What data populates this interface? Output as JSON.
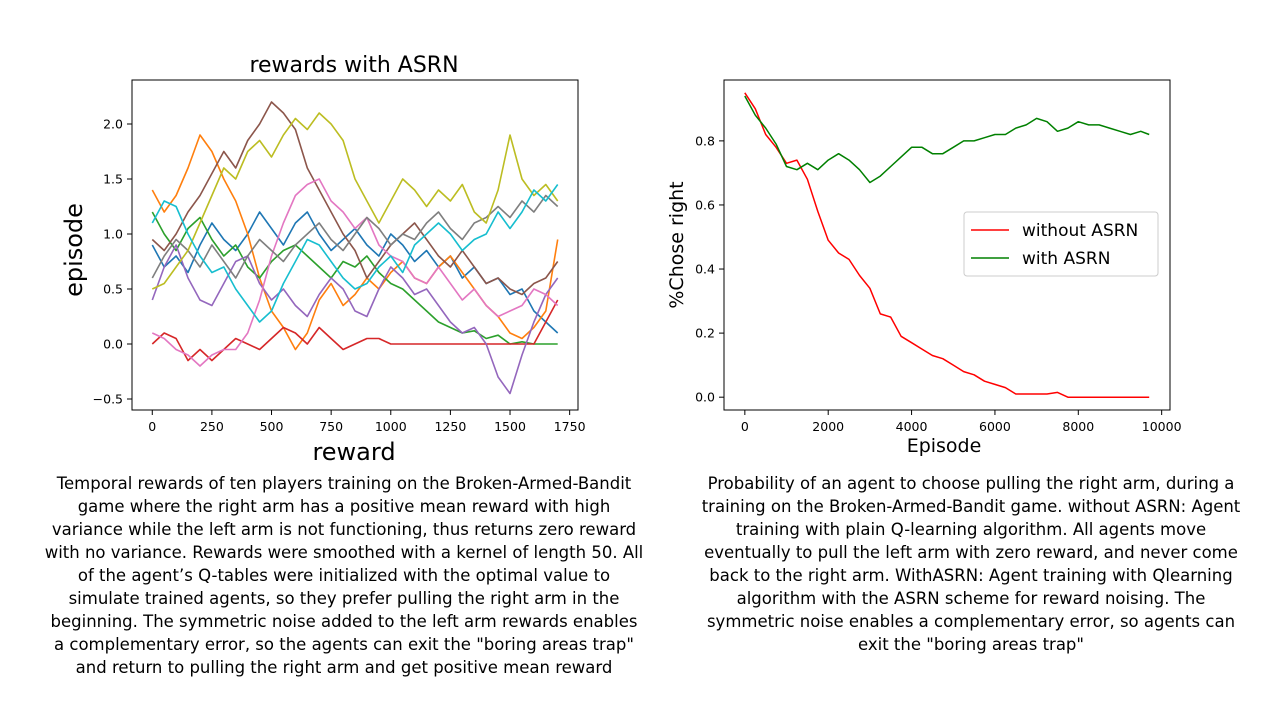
{
  "chart_data": [
    {
      "type": "line",
      "title": "rewards with ASRN",
      "xlabel": "reward",
      "ylabel": "episode",
      "xlim": [
        -85,
        1785
      ],
      "ylim": [
        -0.6,
        2.4
      ],
      "x_ticks": [
        0,
        250,
        500,
        750,
        1000,
        1250,
        1500,
        1750
      ],
      "y_ticks": [
        -0.5,
        0.0,
        0.5,
        1.0,
        1.5,
        2.0
      ],
      "grid": false,
      "legend": null,
      "x": [
        0,
        50,
        100,
        150,
        200,
        250,
        300,
        350,
        400,
        450,
        500,
        550,
        600,
        650,
        700,
        750,
        800,
        850,
        900,
        950,
        1000,
        1050,
        1100,
        1150,
        1200,
        1250,
        1300,
        1350,
        1400,
        1450,
        1500,
        1550,
        1600,
        1650,
        1700
      ],
      "series": [
        {
          "color": "#1f77b4",
          "values": [
            0.9,
            0.7,
            0.8,
            0.65,
            0.9,
            1.1,
            0.95,
            0.85,
            1.0,
            1.2,
            1.05,
            0.9,
            1.1,
            1.2,
            1.0,
            0.85,
            0.95,
            1.05,
            0.9,
            0.8,
            1.0,
            0.9,
            0.75,
            0.85,
            0.7,
            0.8,
            0.6,
            0.7,
            0.55,
            0.6,
            0.45,
            0.5,
            0.3,
            0.2,
            0.1
          ]
        },
        {
          "color": "#ff7f0e",
          "values": [
            1.4,
            1.2,
            1.35,
            1.6,
            1.9,
            1.75,
            1.5,
            1.3,
            1.0,
            0.6,
            0.3,
            0.15,
            -0.05,
            0.1,
            0.4,
            0.55,
            0.35,
            0.45,
            0.6,
            0.5,
            0.65,
            0.75,
            0.6,
            0.55,
            0.7,
            0.8,
            0.65,
            0.5,
            0.35,
            0.25,
            0.1,
            0.05,
            0.15,
            0.3,
            0.95
          ]
        },
        {
          "color": "#2ca02c",
          "values": [
            1.2,
            1.0,
            0.85,
            1.05,
            1.15,
            0.95,
            0.8,
            0.9,
            0.7,
            0.6,
            0.75,
            0.85,
            0.9,
            0.8,
            0.7,
            0.6,
            0.75,
            0.7,
            0.8,
            0.65,
            0.55,
            0.5,
            0.4,
            0.3,
            0.2,
            0.15,
            0.1,
            0.12,
            0.05,
            0.08,
            0.0,
            0.02,
            0.0,
            0.0,
            0.0
          ]
        },
        {
          "color": "#d62728",
          "values": [
            0.0,
            0.1,
            0.05,
            -0.15,
            -0.05,
            -0.15,
            -0.05,
            0.05,
            0.0,
            -0.05,
            0.05,
            0.15,
            0.1,
            0.0,
            0.15,
            0.05,
            -0.05,
            0.0,
            0.05,
            0.05,
            0.0,
            0.0,
            0.0,
            0.0,
            0.0,
            0.0,
            0.0,
            0.0,
            0.0,
            0.0,
            0.0,
            0.0,
            0.0,
            0.2,
            0.4
          ]
        },
        {
          "color": "#9467bd",
          "values": [
            0.4,
            0.7,
            0.9,
            0.6,
            0.4,
            0.35,
            0.55,
            0.75,
            0.8,
            0.55,
            0.4,
            0.5,
            0.35,
            0.25,
            0.45,
            0.6,
            0.5,
            0.3,
            0.25,
            0.5,
            0.7,
            0.6,
            0.45,
            0.5,
            0.35,
            0.2,
            0.1,
            0.15,
            0.0,
            -0.3,
            -0.45,
            -0.1,
            0.2,
            0.45,
            0.6
          ]
        },
        {
          "color": "#8c564b",
          "values": [
            0.95,
            0.85,
            1.0,
            1.2,
            1.35,
            1.55,
            1.75,
            1.6,
            1.85,
            2.0,
            2.2,
            2.1,
            1.95,
            1.6,
            1.4,
            1.2,
            1.0,
            0.85,
            0.6,
            0.75,
            0.9,
            1.0,
            1.1,
            0.95,
            0.8,
            0.7,
            0.85,
            0.7,
            0.55,
            0.6,
            0.5,
            0.45,
            0.55,
            0.6,
            0.75
          ]
        },
        {
          "color": "#e377c2",
          "values": [
            0.1,
            0.05,
            -0.05,
            -0.1,
            -0.2,
            -0.1,
            -0.05,
            -0.05,
            0.1,
            0.4,
            0.8,
            1.1,
            1.35,
            1.45,
            1.5,
            1.3,
            1.2,
            1.05,
            1.15,
            0.9,
            0.8,
            0.75,
            0.6,
            0.55,
            0.7,
            0.55,
            0.4,
            0.5,
            0.35,
            0.25,
            0.3,
            0.35,
            0.5,
            0.45,
            0.35
          ]
        },
        {
          "color": "#7f7f7f",
          "values": [
            0.6,
            0.8,
            0.95,
            0.85,
            0.7,
            0.9,
            0.75,
            0.6,
            0.8,
            0.95,
            0.85,
            0.75,
            0.9,
            1.0,
            1.1,
            0.95,
            0.85,
            1.0,
            1.15,
            1.05,
            0.9,
            1.0,
            0.95,
            1.1,
            1.2,
            1.05,
            0.95,
            1.1,
            1.15,
            1.25,
            1.15,
            1.3,
            1.2,
            1.35,
            1.25
          ]
        },
        {
          "color": "#bcbd22",
          "values": [
            0.5,
            0.55,
            0.7,
            0.85,
            1.1,
            1.35,
            1.6,
            1.5,
            1.75,
            1.85,
            1.7,
            1.9,
            2.05,
            1.95,
            2.1,
            2.0,
            1.85,
            1.5,
            1.3,
            1.1,
            1.3,
            1.5,
            1.4,
            1.25,
            1.4,
            1.3,
            1.45,
            1.2,
            1.1,
            1.4,
            1.9,
            1.5,
            1.35,
            1.45,
            1.3
          ]
        },
        {
          "color": "#17becf",
          "values": [
            1.1,
            1.3,
            1.25,
            1.0,
            0.8,
            0.65,
            0.7,
            0.5,
            0.35,
            0.2,
            0.3,
            0.55,
            0.75,
            0.95,
            0.9,
            0.75,
            0.6,
            0.5,
            0.55,
            0.7,
            0.8,
            0.65,
            0.9,
            1.0,
            1.1,
            1.0,
            0.85,
            0.95,
            1.0,
            1.2,
            1.05,
            1.2,
            1.4,
            1.3,
            1.45
          ]
        }
      ]
    },
    {
      "type": "line",
      "title": "",
      "xlabel": "Episode",
      "ylabel": "%Chose right",
      "xlim": [
        -500,
        10200
      ],
      "ylim": [
        -0.04,
        0.99
      ],
      "x_ticks": [
        0,
        2000,
        4000,
        6000,
        8000,
        10000
      ],
      "y_ticks": [
        0.0,
        0.2,
        0.4,
        0.6,
        0.8
      ],
      "grid": false,
      "legend": "center-right",
      "x": [
        0,
        250,
        500,
        750,
        1000,
        1250,
        1500,
        1750,
        2000,
        2250,
        2500,
        2750,
        3000,
        3250,
        3500,
        3750,
        4000,
        4250,
        4500,
        4750,
        5000,
        5250,
        5500,
        5750,
        6000,
        6250,
        6500,
        6750,
        7000,
        7250,
        7500,
        7750,
        8000,
        8250,
        8500,
        8750,
        9000,
        9250,
        9500,
        9700
      ],
      "series": [
        {
          "name": "without ASRN",
          "color": "#ff0000",
          "values": [
            0.95,
            0.9,
            0.82,
            0.78,
            0.73,
            0.74,
            0.68,
            0.58,
            0.49,
            0.45,
            0.43,
            0.38,
            0.34,
            0.26,
            0.25,
            0.19,
            0.17,
            0.15,
            0.13,
            0.12,
            0.1,
            0.08,
            0.07,
            0.05,
            0.04,
            0.03,
            0.01,
            0.01,
            0.01,
            0.01,
            0.015,
            0.0,
            0.0,
            0.0,
            0.0,
            0.0,
            0.0,
            0.0,
            0.0,
            0.0
          ]
        },
        {
          "name": "with ASRN",
          "color": "#008000",
          "values": [
            0.94,
            0.88,
            0.84,
            0.79,
            0.72,
            0.71,
            0.73,
            0.71,
            0.74,
            0.76,
            0.74,
            0.71,
            0.67,
            0.69,
            0.72,
            0.75,
            0.78,
            0.78,
            0.76,
            0.76,
            0.78,
            0.8,
            0.8,
            0.81,
            0.82,
            0.82,
            0.84,
            0.85,
            0.87,
            0.86,
            0.83,
            0.84,
            0.86,
            0.85,
            0.85,
            0.84,
            0.83,
            0.82,
            0.83,
            0.82
          ]
        }
      ]
    }
  ],
  "captions": {
    "left": "Temporal rewards of ten players training on the Broken-Armed-Bandit game where the right arm has a positive mean reward with high variance while the left arm is not functioning, thus returns zero reward with no variance. Rewards were smoothed with a kernel of length 50. All of the agent’s Q-tables were initialized with the optimal value to simulate trained agents, so they prefer pulling the right arm in the beginning. The symmetric noise added to the left arm rewards enables a complementary error, so the agents can exit the \"boring areas trap\" and return to pulling the right arm and get positive mean reward",
    "right": "Probability of an agent to choose pulling the right arm, during a training on the Broken-Armed-Bandit  game. without ASRN: Agent training with plain Q-learning algorithm. All agents move eventually to pull the left arm with zero reward, and never come back to the right arm. WithASRN: Agent training with Qlearning algorithm with the ASRN scheme for reward noising. The symmetric noise enables a complementary error, so agents can exit the \"boring areas trap\""
  }
}
